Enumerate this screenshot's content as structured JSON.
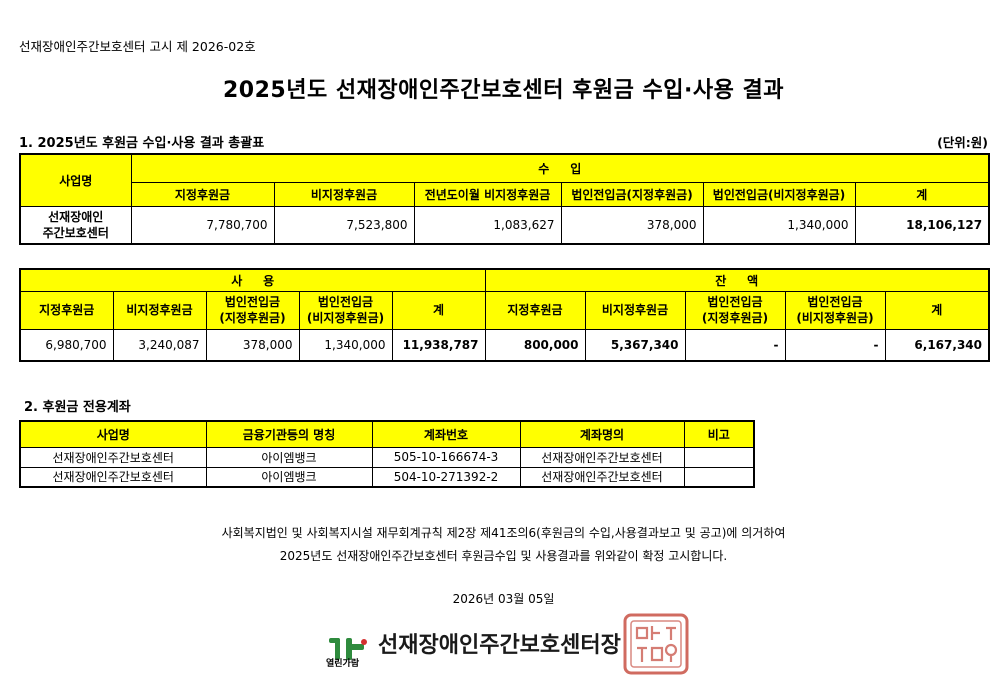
{
  "notice": "선재장애인주간보호센터 고시 제 2026-02호",
  "title": "2025년도 선재장애인주간보호센터 후원금 수입·사용 결과",
  "section1": {
    "heading": "1. 2025년도 후원금 수입·사용 결과 총괄표",
    "unit": "(단위:원)",
    "income": {
      "header_business": "사업명",
      "header_group": "수     입",
      "columns": [
        "지정후원금",
        "비지정후원금",
        "전년도이월 비지정후원금",
        "법인전입금(지정후원금)",
        "법인전입금(비지정후원금)",
        "계"
      ],
      "row_name_line1": "선재장애인",
      "row_name_line2": "주간보호센터",
      "values": [
        "7,780,700",
        "7,523,800",
        "1,083,627",
        "378,000",
        "1,340,000",
        "18,106,127"
      ]
    },
    "usage": {
      "group_use": "사     용",
      "group_balance": "잔     액",
      "use_columns": [
        {
          "line1": "지정후원금",
          "line2": ""
        },
        {
          "line1": "비지정후원금",
          "line2": ""
        },
        {
          "line1": "법인전입금",
          "line2": "(지정후원금)"
        },
        {
          "line1": "법인전입금",
          "line2": "(비지정후원금)"
        },
        {
          "line1": "계",
          "line2": ""
        }
      ],
      "balance_columns": [
        {
          "line1": "지정후원금",
          "line2": ""
        },
        {
          "line1": "비지정후원금",
          "line2": ""
        },
        {
          "line1": "법인전입금",
          "line2": "(지정후원금)"
        },
        {
          "line1": "법인전입금",
          "line2": "(비지정후원금)"
        },
        {
          "line1": "계",
          "line2": ""
        }
      ],
      "use_values": [
        "6,980,700",
        "3,240,087",
        "378,000",
        "1,340,000",
        "11,938,787"
      ],
      "balance_values": [
        "800,000",
        "5,367,340",
        "-",
        "-",
        "6,167,340"
      ]
    }
  },
  "section2": {
    "heading": "2. 후원금 전용계좌",
    "columns": [
      "사업명",
      "금융기관등의 명칭",
      "계좌번호",
      "계좌명의",
      "비고"
    ],
    "rows": [
      [
        "선재장애인주간보호센터",
        "아이엠뱅크",
        "505-10-166674-3",
        "선재장애인주간보호센터",
        ""
      ],
      [
        "선재장애인주간보호센터",
        "아이엠뱅크",
        "504-10-271392-2",
        "선재장애인주간보호센터",
        ""
      ]
    ]
  },
  "statement": {
    "line1": "사회복지법인 및 사회복지시설 재무회계규칙 제2장 제41조의6(후원금의 수입,사용결과보고 및 공고)에 의거하여",
    "line2": "2025년도 선재장애인주간보호센터 후원금수입 및 사용결과를 위와같이 확정 고시합니다."
  },
  "date": "2026년 03월 05일",
  "footer": {
    "logo_caption": "열린가람",
    "signer": "선재장애인주간보호센터장",
    "logo_color": "#2e8b3d",
    "logo_accent": "#d32f2f",
    "seal_color": "#c0392b"
  }
}
